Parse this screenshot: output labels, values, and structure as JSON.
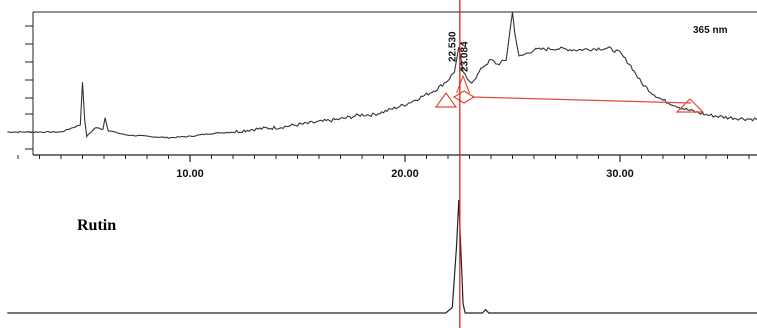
{
  "chart_data": [
    {
      "type": "line",
      "title": "",
      "wavelength_label": "365 nm",
      "xlabel": "",
      "ylabel": "",
      "xlim": [
        1.5,
        37.2
      ],
      "x_ticks": [
        10,
        20,
        30
      ],
      "x_tick_labels": [
        "10.00",
        "20.00",
        "30.00"
      ],
      "peak_labels": [
        {
          "x": 22.53,
          "text": "22.530"
        },
        {
          "x": 23.084,
          "text": "23.084"
        }
      ],
      "baseline_marker": {
        "x_start": 22.0,
        "x_end": 33.3
      },
      "series": [
        {
          "x": [
            1.5,
            4.0,
            4.9,
            5.0,
            5.1,
            5.2,
            5.6,
            5.95,
            6.05,
            6.2,
            7.0,
            8.0,
            9.0,
            10.0,
            11.0,
            12.0,
            13.0,
            14.0,
            15.0,
            16.0,
            17.0,
            18.0,
            18.5,
            19.0,
            20.0,
            21.0,
            21.5,
            22.0,
            22.3,
            22.5,
            22.7,
            22.9,
            23.1,
            23.3,
            23.6,
            24.0,
            24.3,
            24.7,
            24.9,
            25.0,
            25.1,
            25.3,
            26.0,
            27.0,
            28.0,
            29.0,
            29.5,
            30.0,
            30.5,
            31.0,
            31.5,
            32.0,
            33.0,
            34.0,
            35.0,
            36.0,
            37.2
          ],
          "y": [
            0,
            0,
            0.5,
            3.5,
            0.8,
            -0.3,
            0.3,
            0.2,
            1.0,
            0.1,
            -0.2,
            -0.3,
            -0.4,
            -0.3,
            -0.1,
            0.0,
            0.2,
            0.3,
            0.5,
            0.7,
            0.9,
            1.2,
            1.2,
            1.4,
            1.9,
            2.6,
            3.0,
            3.6,
            4.2,
            5.8,
            4.2,
            3.6,
            3.5,
            3.8,
            4.5,
            5.0,
            4.7,
            5.0,
            7.2,
            8.3,
            7.0,
            5.2,
            5.7,
            5.8,
            5.7,
            5.8,
            5.8,
            5.5,
            4.6,
            3.4,
            2.7,
            2.2,
            1.6,
            1.2,
            1.0,
            0.9,
            0.9
          ]
        }
      ],
      "ylim": [
        -1.5,
        8.5
      ],
      "marker_x": 22.55
    },
    {
      "type": "line",
      "title": "Rutin",
      "xlabel": "",
      "ylabel": "",
      "xlim": [
        1.5,
        37.2
      ],
      "series": [
        {
          "x": [
            1.5,
            21.9,
            22.2,
            22.4,
            22.5,
            22.6,
            22.7,
            22.8,
            23.0,
            23.6,
            23.75,
            23.9,
            37.2
          ],
          "y": [
            0,
            0,
            0.05,
            0.6,
            1.0,
            0.55,
            0.08,
            0.0,
            0.0,
            0.0,
            0.03,
            0.0,
            0
          ]
        }
      ],
      "ylim": [
        -0.02,
        1.0
      ]
    }
  ]
}
